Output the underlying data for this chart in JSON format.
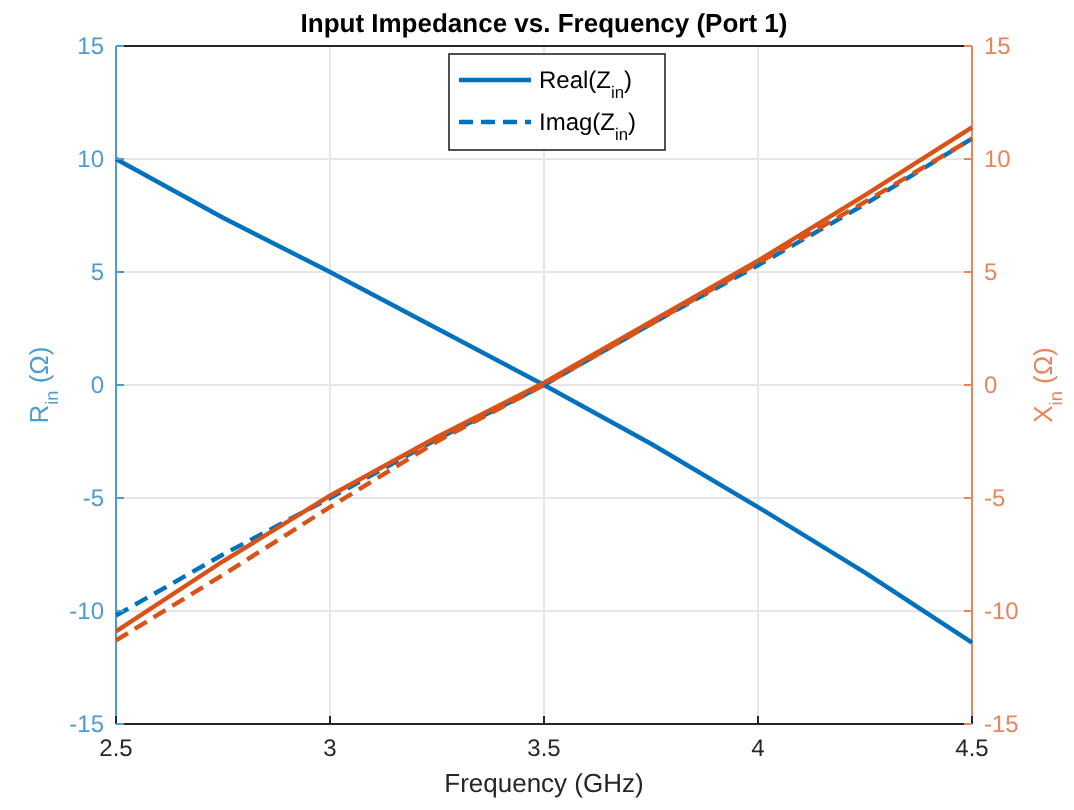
{
  "chart_data": {
    "type": "line",
    "title": "Input Impedance vs. Frequency (Port 1)",
    "xlabel": "Frequency (GHz)",
    "ylabel": "R$_{in}$ (Ω)",
    "y2label": "X$_{in}$ (Ω)",
    "x": [
      2.5,
      2.75,
      3.0,
      3.25,
      3.5,
      3.75,
      4.0,
      4.25,
      4.5
    ],
    "xlim": [
      2.5,
      4.5
    ],
    "xticks": [
      2.5,
      3,
      3.5,
      4,
      4.5
    ],
    "ylim": [
      -15,
      15
    ],
    "yticks": [
      -15,
      -10,
      -5,
      0,
      5,
      10,
      15
    ],
    "y2lim": [
      -15,
      15
    ],
    "y2ticks": [
      -15,
      -10,
      -5,
      0,
      5,
      10,
      15
    ],
    "grid": true,
    "legend": "top",
    "line_style": "solid",
    "series": [
      {
        "name": "Real(Z$_{in}$)",
        "color": "#0072bd",
        "values": [
          10,
          7.4,
          5.0,
          2.5,
          0,
          -2.6,
          -5.4,
          -8.3,
          -11.4
        ]
      },
      {
        "name": "Imag(Z$_{in}$)",
        "color": "#0072bd",
        "line_style": "dashed",
        "values": [
          -10.2,
          -7.5,
          -5.0,
          -2.4,
          0,
          2.7,
          5.3,
          8.0,
          10.9
        ]
      },
      {
        "color": "#d95319",
        "axis": "y2",
        "values": [
          -10.9,
          -7.8,
          -4.9,
          -2.3,
          0.1,
          2.8,
          5.5,
          8.4,
          11.4
        ]
      },
      {
        "color": "#d95319",
        "axis": "y2",
        "line_style": "dashed",
        "values": [
          -11.3,
          -8.4,
          -5.4,
          -2.5,
          0,
          2.7,
          5.4,
          8.1,
          10.9
        ]
      }
    ]
  }
}
